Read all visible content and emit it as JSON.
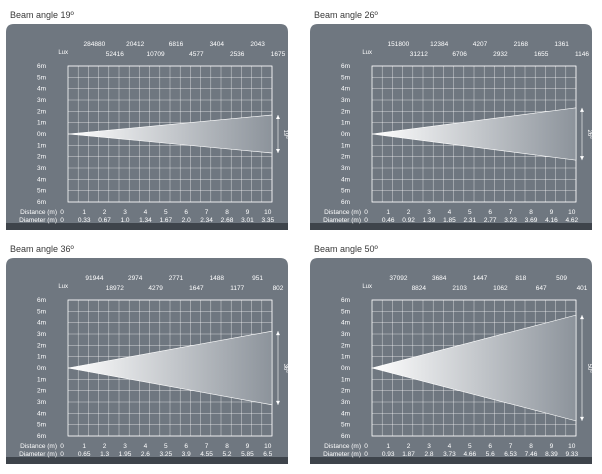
{
  "colors": {
    "panel_bg": "#6f7780",
    "grid": "#ffffff",
    "text": "#ffffff",
    "beam_start": "#ffffff",
    "beam_end": "#8c939b",
    "footer": "#3e444b",
    "title_text": "#3a3a3a"
  },
  "axis_labels": {
    "lux": "Lux",
    "distance": "Distance (m)",
    "diameter": "Diameter (m)",
    "y_ticks": [
      "6m",
      "5m",
      "4m",
      "3m",
      "2m",
      "1m",
      "0m",
      "1m",
      "2m",
      "3m",
      "4m",
      "5m",
      "6m"
    ]
  },
  "chart_data": [
    {
      "type": "line",
      "title": "Beam angle 19º",
      "angle_label": "19º",
      "distance_label": "0",
      "diameter_label": "0",
      "x": [
        1,
        2,
        3,
        4,
        5,
        6,
        7,
        8,
        9,
        10
      ],
      "distance_ticks": [
        "1",
        "2",
        "3",
        "4",
        "5",
        "6",
        "7",
        "8",
        "9",
        "10"
      ],
      "lux_top": [
        "284880",
        "20412",
        "6816",
        "3404",
        "2043"
      ],
      "lux_bottom": [
        "52416",
        "10709",
        "4577",
        "2536",
        "1675"
      ],
      "diameter": [
        "0.33",
        "0.67",
        "1.0",
        "1.34",
        "1.67",
        "2.0",
        "2.34",
        "2.68",
        "3.01",
        "3.35"
      ],
      "diameter_values": [
        0.33,
        0.67,
        1.0,
        1.34,
        1.67,
        2.0,
        2.34,
        2.68,
        3.01,
        3.35
      ],
      "xlim": [
        0,
        10
      ],
      "ylim": [
        -6,
        6
      ]
    },
    {
      "type": "line",
      "title": "Beam angle 26º",
      "angle_label": "26º",
      "distance_label": "0",
      "diameter_label": "0",
      "x": [
        1,
        2,
        3,
        4,
        5,
        6,
        7,
        8,
        9,
        10
      ],
      "distance_ticks": [
        "1",
        "2",
        "3",
        "4",
        "5",
        "6",
        "7",
        "8",
        "9",
        "10"
      ],
      "lux_top": [
        "151800",
        "12384",
        "4207",
        "2168",
        "1361"
      ],
      "lux_bottom": [
        "31212",
        "6706",
        "2932",
        "1655",
        "1146"
      ],
      "diameter": [
        "0.46",
        "0.92",
        "1.39",
        "1.85",
        "2.31",
        "2.77",
        "3.23",
        "3.69",
        "4.16",
        "4.62"
      ],
      "diameter_values": [
        0.46,
        0.92,
        1.39,
        1.85,
        2.31,
        2.77,
        3.23,
        3.69,
        4.16,
        4.62
      ],
      "xlim": [
        0,
        10
      ],
      "ylim": [
        -6,
        6
      ]
    },
    {
      "type": "line",
      "title": "Beam angle 36º",
      "angle_label": "36º",
      "distance_label": "0",
      "diameter_label": "0",
      "x": [
        1,
        2,
        3,
        4,
        5,
        6,
        7,
        8,
        9,
        10
      ],
      "distance_ticks": [
        "1",
        "2",
        "3",
        "4",
        "5",
        "6",
        "7",
        "8",
        "9",
        "10"
      ],
      "lux_top": [
        "91944",
        "2974",
        "2771",
        "1488",
        "951"
      ],
      "lux_bottom": [
        "18972",
        "4279",
        "1647",
        "1177",
        "802"
      ],
      "diameter": [
        "0.65",
        "1.3",
        "1.95",
        "2.6",
        "3.25",
        "3.9",
        "4.55",
        "5.2",
        "5.85",
        "6.5"
      ],
      "diameter_values": [
        0.65,
        1.3,
        1.95,
        2.6,
        3.25,
        3.9,
        4.55,
        5.2,
        5.85,
        6.5
      ],
      "xlim": [
        0,
        10
      ],
      "ylim": [
        -6,
        6
      ]
    },
    {
      "type": "line",
      "title": "Beam angle 50º",
      "angle_label": "50º",
      "distance_label": "0",
      "diameter_label": "0",
      "x": [
        1,
        2,
        3,
        4,
        5,
        6,
        7,
        8,
        9,
        10
      ],
      "distance_ticks": [
        "1",
        "2",
        "3",
        "4",
        "5",
        "6",
        "7",
        "8",
        "9",
        "10"
      ],
      "lux_top": [
        "37092",
        "3684",
        "1447",
        "818",
        "509"
      ],
      "lux_bottom": [
        "8824",
        "2103",
        "1062",
        "647",
        "401"
      ],
      "diameter": [
        "0.93",
        "1.87",
        "2.8",
        "3.73",
        "4.66",
        "5.6",
        "6.53",
        "7.46",
        "8.39",
        "9.33"
      ],
      "diameter_values": [
        0.93,
        1.87,
        2.8,
        3.73,
        4.66,
        5.6,
        6.53,
        7.46,
        8.39,
        9.33
      ],
      "xlim": [
        0,
        10
      ],
      "ylim": [
        -6,
        6
      ]
    }
  ]
}
